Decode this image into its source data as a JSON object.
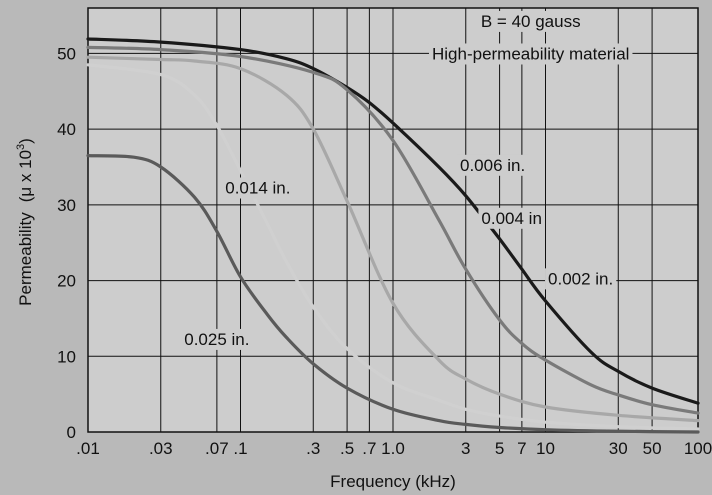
{
  "chart_data": {
    "type": "line",
    "xscale": "log",
    "xlabel": "Frequency (kHz)",
    "ylabel": "Permeability",
    "ylabel_unit": "(μ x 10",
    "ylabel_exp": "3",
    "xlim": [
      0.01,
      100
    ],
    "ylim": [
      0,
      56
    ],
    "grid": true,
    "xticks": [
      0.01,
      0.03,
      0.07,
      0.1,
      0.3,
      0.5,
      0.7,
      1,
      3,
      5,
      7,
      10,
      30,
      50,
      100
    ],
    "xtick_labels": [
      ".01",
      ".03",
      ".07",
      ".1",
      ".3",
      ".5",
      ".7",
      "1.0",
      "3",
      "5",
      "7",
      "10",
      "30",
      "50",
      "100"
    ],
    "yticks": [
      0,
      10,
      20,
      30,
      40,
      50
    ],
    "ytick_labels": [
      "0",
      "10",
      "20",
      "30",
      "40",
      "50"
    ],
    "series": [
      {
        "name": "0.006 in.",
        "color": "#1a1a1a",
        "x": [
          0.01,
          0.03,
          0.1,
          0.2,
          0.3,
          0.5,
          0.7,
          1,
          2,
          3,
          5,
          7,
          10,
          20,
          30,
          50,
          100
        ],
        "y": [
          51.9,
          51.5,
          50.5,
          49.3,
          48.0,
          45.5,
          43.5,
          40.8,
          35.0,
          31.2,
          25.5,
          21.5,
          17.3,
          10.5,
          8.0,
          5.8,
          3.8
        ]
      },
      {
        "name": "0.004 in",
        "color": "#7a7a7a",
        "x": [
          0.01,
          0.03,
          0.1,
          0.3,
          0.5,
          1,
          2,
          3,
          5,
          7,
          10,
          20,
          30,
          50,
          100
        ],
        "y": [
          50.8,
          50.5,
          49.6,
          47.5,
          45.2,
          38.5,
          28.0,
          21.5,
          14.8,
          11.7,
          9.5,
          6.2,
          4.9,
          3.6,
          2.5
        ]
      },
      {
        "name": "0.002 in.",
        "color": "#a8a8a8",
        "x": [
          0.01,
          0.03,
          0.05,
          0.1,
          0.2,
          0.3,
          0.5,
          1,
          2,
          3,
          5,
          10,
          30,
          100
        ],
        "y": [
          49.5,
          49.2,
          49.0,
          48.0,
          44.5,
          40.0,
          30.5,
          17.0,
          9.5,
          7.0,
          5.0,
          3.3,
          2.2,
          1.5
        ]
      },
      {
        "name": "0.014 in.",
        "color": "#d0d0d0",
        "x": [
          0.01,
          0.03,
          0.05,
          0.07,
          0.1,
          0.15,
          0.2,
          0.3,
          0.5,
          1,
          2,
          3,
          5,
          10,
          30,
          100
        ],
        "y": [
          48.5,
          47.2,
          44.5,
          40.5,
          34.5,
          27.5,
          22.5,
          16.5,
          11.0,
          6.5,
          4.2,
          3.0,
          2.1,
          1.3,
          0.7,
          0.4
        ]
      },
      {
        "name": "0.025 in.",
        "color": "#5a5a5a",
        "x": [
          0.01,
          0.02,
          0.03,
          0.05,
          0.07,
          0.1,
          0.15,
          0.2,
          0.3,
          0.5,
          1,
          2,
          3,
          5,
          10,
          30,
          100
        ],
        "y": [
          36.5,
          36.3,
          35.0,
          31.0,
          26.5,
          20.5,
          15.5,
          12.5,
          9.0,
          5.8,
          3.0,
          1.5,
          1.0,
          0.6,
          0.3,
          0.1,
          0.0
        ]
      }
    ],
    "annotations": [
      {
        "text": "B = 40 gauss",
        "x": 8,
        "y": 53.5
      },
      {
        "text": "High-permeability material",
        "x": 8,
        "y": 49.2
      },
      {
        "text": "0.006 in.",
        "x": 4.5,
        "y": 34.5
      },
      {
        "text": "0.004 in",
        "x": 6,
        "y": 27.5
      },
      {
        "text": "0.002 in.",
        "x": 17,
        "y": 19.5
      },
      {
        "text": "0.014 in.",
        "x": 0.13,
        "y": 31.5
      },
      {
        "text": "0.025 in.",
        "x": 0.07,
        "y": 11.5
      }
    ]
  }
}
